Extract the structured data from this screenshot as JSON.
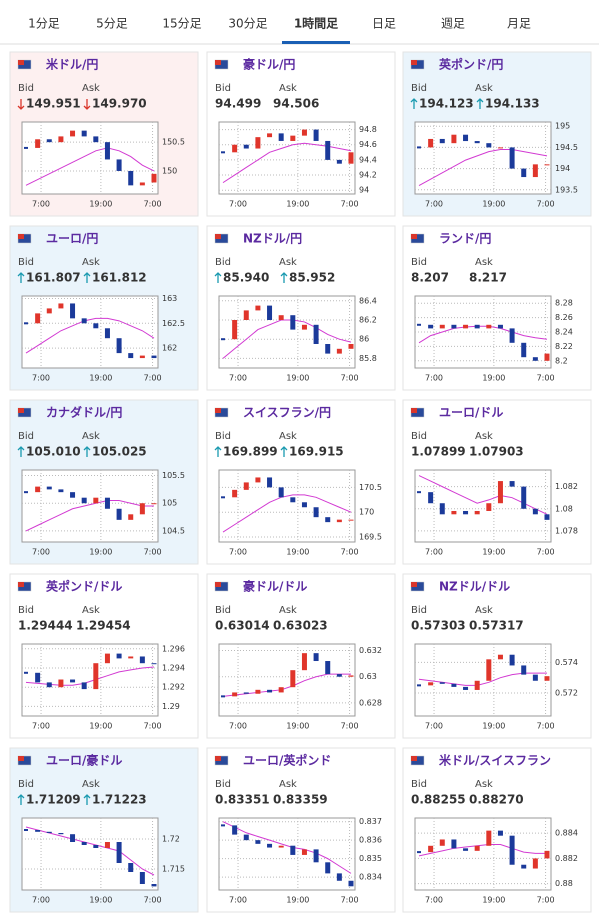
{
  "tabs": [
    "1分足",
    "5分足",
    "15分足",
    "30分足",
    "1時間足",
    "日足",
    "週足",
    "月足"
  ],
  "active_tab": 4,
  "bid_label": "Bid",
  "ask_label": "Ask",
  "cards": [
    {
      "name": "米ドル/円",
      "bid": "149.951",
      "ask": "149.970",
      "trend": "down",
      "background": "#fdf0f0",
      "chart": {
        "xticks": [
          "7:00",
          "19:00",
          "7:00"
        ],
        "ylim": [
          149.6,
          150.85
        ],
        "yticks": [
          150,
          150.5
        ],
        "closes": [
          150.4,
          150.55,
          150.5,
          150.6,
          150.7,
          150.6,
          150.5,
          150.2,
          150.0,
          149.75,
          149.8,
          149.95
        ],
        "ma": [
          149.75,
          149.85,
          149.95,
          150.05,
          150.15,
          150.25,
          150.35,
          150.4,
          150.35,
          150.25,
          150.1,
          150.0
        ]
      }
    },
    {
      "name": "豪ドル/円",
      "bid": "94.499",
      "ask": "94.506",
      "trend": null,
      "background": "#ffffff",
      "chart": {
        "xticks": [
          "7:00",
          "19:00",
          "7:00"
        ],
        "ylim": [
          93.95,
          94.9
        ],
        "yticks": [
          94,
          94.2,
          94.4,
          94.6,
          94.8
        ],
        "closes": [
          94.5,
          94.6,
          94.55,
          94.7,
          94.75,
          94.65,
          94.72,
          94.8,
          94.65,
          94.4,
          94.35,
          94.5
        ],
        "ma": [
          94.1,
          94.2,
          94.3,
          94.4,
          94.5,
          94.55,
          94.6,
          94.62,
          94.6,
          94.58,
          94.55,
          94.52
        ]
      }
    },
    {
      "name": "英ポンド/円",
      "bid": "194.123",
      "ask": "194.133",
      "trend": "up",
      "background": "#eaf4fb",
      "chart": {
        "xticks": [
          "7:00",
          "19:00",
          "7:00"
        ],
        "ylim": [
          193.4,
          195.1
        ],
        "yticks": [
          193.5,
          194,
          194.5,
          195
        ],
        "closes": [
          194.5,
          194.7,
          194.6,
          194.8,
          194.65,
          194.6,
          194.5,
          194.5,
          194.0,
          193.8,
          194.1,
          194.1
        ],
        "ma": [
          193.6,
          193.75,
          193.9,
          194.05,
          194.2,
          194.3,
          194.4,
          194.45,
          194.45,
          194.4,
          194.35,
          194.3
        ]
      }
    },
    {
      "name": "ユーロ/円",
      "bid": "161.807",
      "ask": "161.812",
      "trend": "up",
      "background": "#eaf4fb",
      "chart": {
        "xticks": [
          "7:00",
          "19:00",
          "7:00"
        ],
        "ylim": [
          161.6,
          163.05
        ],
        "yticks": [
          162,
          162.5,
          163
        ],
        "closes": [
          162.5,
          162.7,
          162.8,
          162.9,
          162.6,
          162.5,
          162.4,
          162.2,
          161.9,
          161.8,
          161.85,
          161.8
        ],
        "ma": [
          161.9,
          162.05,
          162.2,
          162.35,
          162.45,
          162.55,
          162.6,
          162.6,
          162.55,
          162.45,
          162.35,
          162.2
        ]
      }
    },
    {
      "name": "NZドル/円",
      "bid": "85.940",
      "ask": "85.952",
      "trend": "up",
      "background": "#ffffff",
      "chart": {
        "xticks": [
          "7:00",
          "19:00",
          "7:00"
        ],
        "ylim": [
          85.7,
          86.45
        ],
        "yticks": [
          85.8,
          86,
          86.2,
          86.4
        ],
        "closes": [
          86.0,
          86.2,
          86.3,
          86.35,
          86.2,
          86.25,
          86.1,
          86.15,
          85.95,
          85.85,
          85.9,
          85.95
        ],
        "ma": [
          85.8,
          85.9,
          86.0,
          86.1,
          86.15,
          86.2,
          86.2,
          86.18,
          86.12,
          86.05,
          86.0,
          85.97
        ]
      }
    },
    {
      "name": "ランド/円",
      "bid": "8.207",
      "ask": "8.217",
      "trend": null,
      "background": "#ffffff",
      "chart": {
        "xticks": [
          "7:00",
          "19:00",
          "7:00"
        ],
        "ylim": [
          8.19,
          8.29
        ],
        "yticks": [
          8.2,
          8.22,
          8.24,
          8.26,
          8.28
        ],
        "closes": [
          8.25,
          8.245,
          8.25,
          8.245,
          8.25,
          8.245,
          8.25,
          8.245,
          8.225,
          8.205,
          8.2,
          8.21
        ],
        "ma": [
          8.225,
          8.235,
          8.24,
          8.245,
          8.247,
          8.248,
          8.248,
          8.245,
          8.24,
          8.235,
          8.232,
          8.23
        ]
      }
    },
    {
      "name": "カナダドル/円",
      "bid": "105.010",
      "ask": "105.025",
      "trend": "up",
      "background": "#eaf4fb",
      "chart": {
        "xticks": [
          "7:00",
          "19:00",
          "7:00"
        ],
        "ylim": [
          104.3,
          105.6
        ],
        "yticks": [
          104.5,
          105,
          105.5
        ],
        "closes": [
          105.2,
          105.3,
          105.25,
          105.2,
          105.1,
          105.0,
          105.1,
          104.9,
          104.7,
          104.8,
          105.0,
          105.0
        ],
        "ma": [
          104.5,
          104.6,
          104.7,
          104.8,
          104.9,
          104.95,
          105.0,
          105.05,
          105.05,
          105.0,
          104.95,
          104.95
        ]
      }
    },
    {
      "name": "スイスフラン/円",
      "bid": "169.899",
      "ask": "169.915",
      "trend": "up",
      "background": "#ffffff",
      "chart": {
        "xticks": [
          "7:00",
          "19:00",
          "7:00"
        ],
        "ylim": [
          169.4,
          170.85
        ],
        "yticks": [
          169.5,
          170,
          170.5
        ],
        "closes": [
          170.3,
          170.45,
          170.6,
          170.7,
          170.5,
          170.3,
          170.2,
          170.1,
          169.9,
          169.8,
          169.85,
          169.85
        ],
        "ma": [
          169.6,
          169.75,
          169.9,
          170.05,
          170.2,
          170.3,
          170.35,
          170.35,
          170.3,
          170.2,
          170.1,
          170.0
        ]
      }
    },
    {
      "name": "ユーロ/ドル",
      "bid": "1.07899",
      "ask": "1.07903",
      "trend": null,
      "background": "#ffffff",
      "chart": {
        "xticks": [
          "7:00",
          "19:00",
          "7:00"
        ],
        "ylim": [
          1.077,
          1.0835
        ],
        "yticks": [
          1.078,
          1.08,
          1.082
        ],
        "closes": [
          1.0815,
          1.0805,
          1.0795,
          1.0798,
          1.0795,
          1.0798,
          1.0805,
          1.0825,
          1.082,
          1.08,
          1.0795,
          1.079
        ],
        "ma": [
          1.083,
          1.0825,
          1.082,
          1.0815,
          1.081,
          1.0805,
          1.0808,
          1.0812,
          1.081,
          1.0805,
          1.08,
          1.0795
        ]
      }
    },
    {
      "name": "英ポンド/ドル",
      "bid": "1.29444",
      "ask": "1.29454",
      "trend": null,
      "background": "#ffffff",
      "chart": {
        "xticks": [
          "7:00",
          "19:00",
          "7:00"
        ],
        "ylim": [
          1.289,
          1.2965
        ],
        "yticks": [
          1.29,
          1.292,
          1.294,
          1.296
        ],
        "closes": [
          1.2935,
          1.2925,
          1.292,
          1.2928,
          1.2925,
          1.2918,
          1.2945,
          1.2955,
          1.295,
          1.2952,
          1.2945,
          1.2944
        ],
        "ma": [
          1.2925,
          1.2924,
          1.2923,
          1.2922,
          1.2922,
          1.2924,
          1.2928,
          1.2932,
          1.2936,
          1.2938,
          1.294,
          1.2941
        ]
      }
    },
    {
      "name": "豪ドル/ドル",
      "bid": "0.63014",
      "ask": "0.63023",
      "trend": null,
      "background": "#ffffff",
      "chart": {
        "xticks": [
          "7:00",
          "19:00",
          "7:00"
        ],
        "ylim": [
          0.627,
          0.6325
        ],
        "yticks": [
          0.628,
          0.63,
          0.632
        ],
        "closes": [
          0.6285,
          0.6288,
          0.6287,
          0.629,
          0.6288,
          0.6292,
          0.6305,
          0.6318,
          0.6312,
          0.6302,
          0.63,
          0.6301
        ],
        "ma": [
          0.6285,
          0.6286,
          0.6287,
          0.6288,
          0.6289,
          0.629,
          0.6293,
          0.6297,
          0.63,
          0.6302,
          0.6302,
          0.6302
        ]
      }
    },
    {
      "name": "NZドル/ドル",
      "bid": "0.57303",
      "ask": "0.57317",
      "trend": null,
      "background": "#ffffff",
      "chart": {
        "xticks": [
          "7:00",
          "19:00",
          "7:00"
        ],
        "ylim": [
          0.5705,
          0.5752
        ],
        "yticks": [
          0.572,
          0.574
        ],
        "closes": [
          0.5725,
          0.5727,
          0.5726,
          0.5724,
          0.5722,
          0.5728,
          0.5742,
          0.5745,
          0.5738,
          0.5732,
          0.5728,
          0.5731
        ],
        "ma": [
          0.5729,
          0.5728,
          0.5727,
          0.5726,
          0.5725,
          0.5725,
          0.5727,
          0.573,
          0.5732,
          0.5733,
          0.5733,
          0.5733
        ]
      }
    },
    {
      "name": "ユーロ/豪ドル",
      "bid": "1.71209",
      "ask": "1.71223",
      "trend": "up",
      "background": "#eaf4fb",
      "chart": {
        "xticks": [
          "7:00",
          "19:00",
          "7:00"
        ],
        "ylim": [
          1.7115,
          1.7235
        ],
        "yticks": [
          1.715,
          1.72
        ],
        "closes": [
          1.7215,
          1.7212,
          1.721,
          1.7208,
          1.7195,
          1.719,
          1.7185,
          1.7195,
          1.716,
          1.7145,
          1.7125,
          1.7121
        ],
        "ma": [
          1.722,
          1.7215,
          1.721,
          1.7205,
          1.72,
          1.7195,
          1.719,
          1.7185,
          1.718,
          1.7165,
          1.715,
          1.714
        ]
      }
    },
    {
      "name": "ユーロ/英ポンド",
      "bid": "0.83351",
      "ask": "0.83359",
      "trend": null,
      "background": "#ffffff",
      "chart": {
        "xticks": [
          "7:00",
          "19:00",
          "7:00"
        ],
        "ylim": [
          0.8333,
          0.8372
        ],
        "yticks": [
          0.834,
          0.835,
          0.836,
          0.837
        ],
        "closes": [
          0.8368,
          0.8363,
          0.836,
          0.8358,
          0.8356,
          0.8357,
          0.8352,
          0.8355,
          0.8348,
          0.8342,
          0.8338,
          0.8335
        ],
        "ma": [
          0.837,
          0.8367,
          0.8364,
          0.8362,
          0.836,
          0.8358,
          0.8356,
          0.8355,
          0.8353,
          0.835,
          0.8346,
          0.8342
        ]
      }
    },
    {
      "name": "米ドル/スイスフラン",
      "bid": "0.88255",
      "ask": "0.88270",
      "trend": null,
      "background": "#ffffff",
      "chart": {
        "xticks": [
          "7:00",
          "19:00",
          "7:00"
        ],
        "ylim": [
          0.8795,
          0.8852
        ],
        "yticks": [
          0.88,
          0.882,
          0.884
        ],
        "closes": [
          0.8825,
          0.883,
          0.8835,
          0.8828,
          0.8826,
          0.883,
          0.8842,
          0.8838,
          0.8815,
          0.8812,
          0.882,
          0.8826
        ],
        "ma": [
          0.8822,
          0.8824,
          0.8826,
          0.8828,
          0.8829,
          0.883,
          0.8831,
          0.8831,
          0.8828,
          0.8825,
          0.8824,
          0.8824
        ]
      }
    }
  ]
}
